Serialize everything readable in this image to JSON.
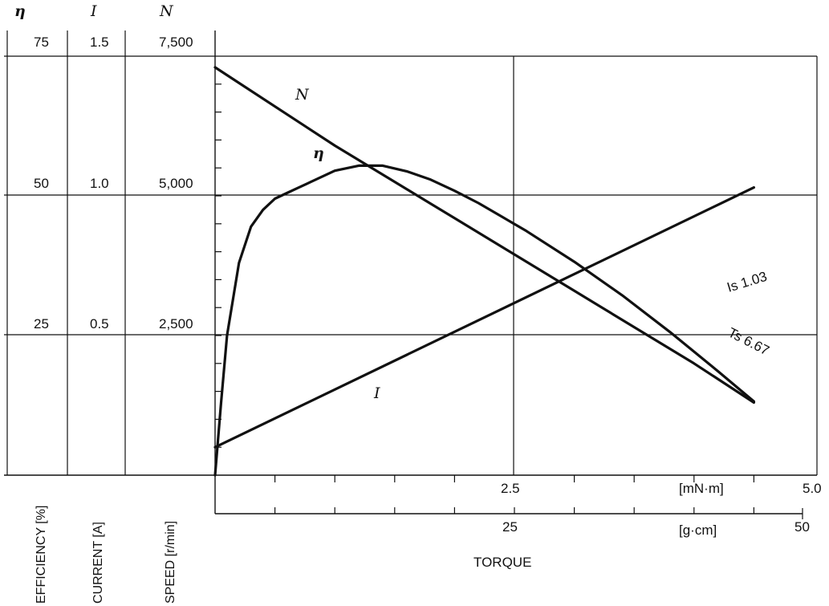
{
  "chart_data": {
    "type": "line",
    "axes": {
      "efficiency": {
        "symbol": "η",
        "ticks": [
          "25",
          "50",
          "75"
        ],
        "tick_values": [
          25,
          50,
          75
        ],
        "label": "EFFICIENCY [%]",
        "range": [
          0,
          75
        ]
      },
      "current": {
        "symbol": "I",
        "ticks": [
          "0.5",
          "1.0",
          "1.5"
        ],
        "tick_values": [
          0.5,
          1.0,
          1.5
        ],
        "label": "CURRENT [A]",
        "range": [
          0,
          1.5
        ]
      },
      "speed": {
        "symbol": "N",
        "ticks": [
          "2,500",
          "5,000",
          "7,500"
        ],
        "tick_values": [
          2500,
          5000,
          7500
        ],
        "label": "SPEED [r/min]",
        "range": [
          0,
          7500
        ]
      },
      "torque_mnm": {
        "ticks": [
          "2.5",
          "5.0"
        ],
        "tick_values": [
          2.5,
          5.0
        ],
        "unit": "[mN·m]",
        "range": [
          0,
          5.0
        ]
      },
      "torque_gcm": {
        "ticks": [
          "25",
          "50"
        ],
        "tick_values": [
          25,
          50
        ],
        "unit": "[g·cm]",
        "range": [
          0,
          50
        ]
      },
      "xlabel": "TORQUE"
    },
    "series": [
      {
        "name": "N",
        "axis": "speed",
        "x": [
          0,
          1.0,
          2.0,
          3.0,
          4.0,
          4.5
        ],
        "y": [
          7300,
          5900,
          4600,
          3300,
          2000,
          1300
        ]
      },
      {
        "name": "η",
        "axis": "efficiency",
        "x": [
          0,
          0.05,
          0.1,
          0.2,
          0.3,
          0.4,
          0.5,
          0.6,
          0.7,
          0.8,
          1.0,
          1.2,
          1.4,
          1.6,
          1.8,
          2.0,
          2.2,
          2.4,
          2.6,
          3.0,
          3.4,
          3.8,
          4.2,
          4.5
        ],
        "y": [
          0,
          13,
          25,
          38,
          44.5,
          47.5,
          49.5,
          50.5,
          51.5,
          52.5,
          54.5,
          55.4,
          55.4,
          54.4,
          52.9,
          50.9,
          48.7,
          46.2,
          43.7,
          38.2,
          32.2,
          25.6,
          18.6,
          13.2
        ]
      },
      {
        "name": "I",
        "axis": "current",
        "x": [
          0,
          4.5
        ],
        "y": [
          0.1,
          1.03
        ]
      }
    ],
    "annotations": [
      "Is 1.03",
      "Ts 6.67"
    ],
    "grid": true,
    "series_labels": {
      "N": "N",
      "eta": "η",
      "I": "I"
    }
  }
}
